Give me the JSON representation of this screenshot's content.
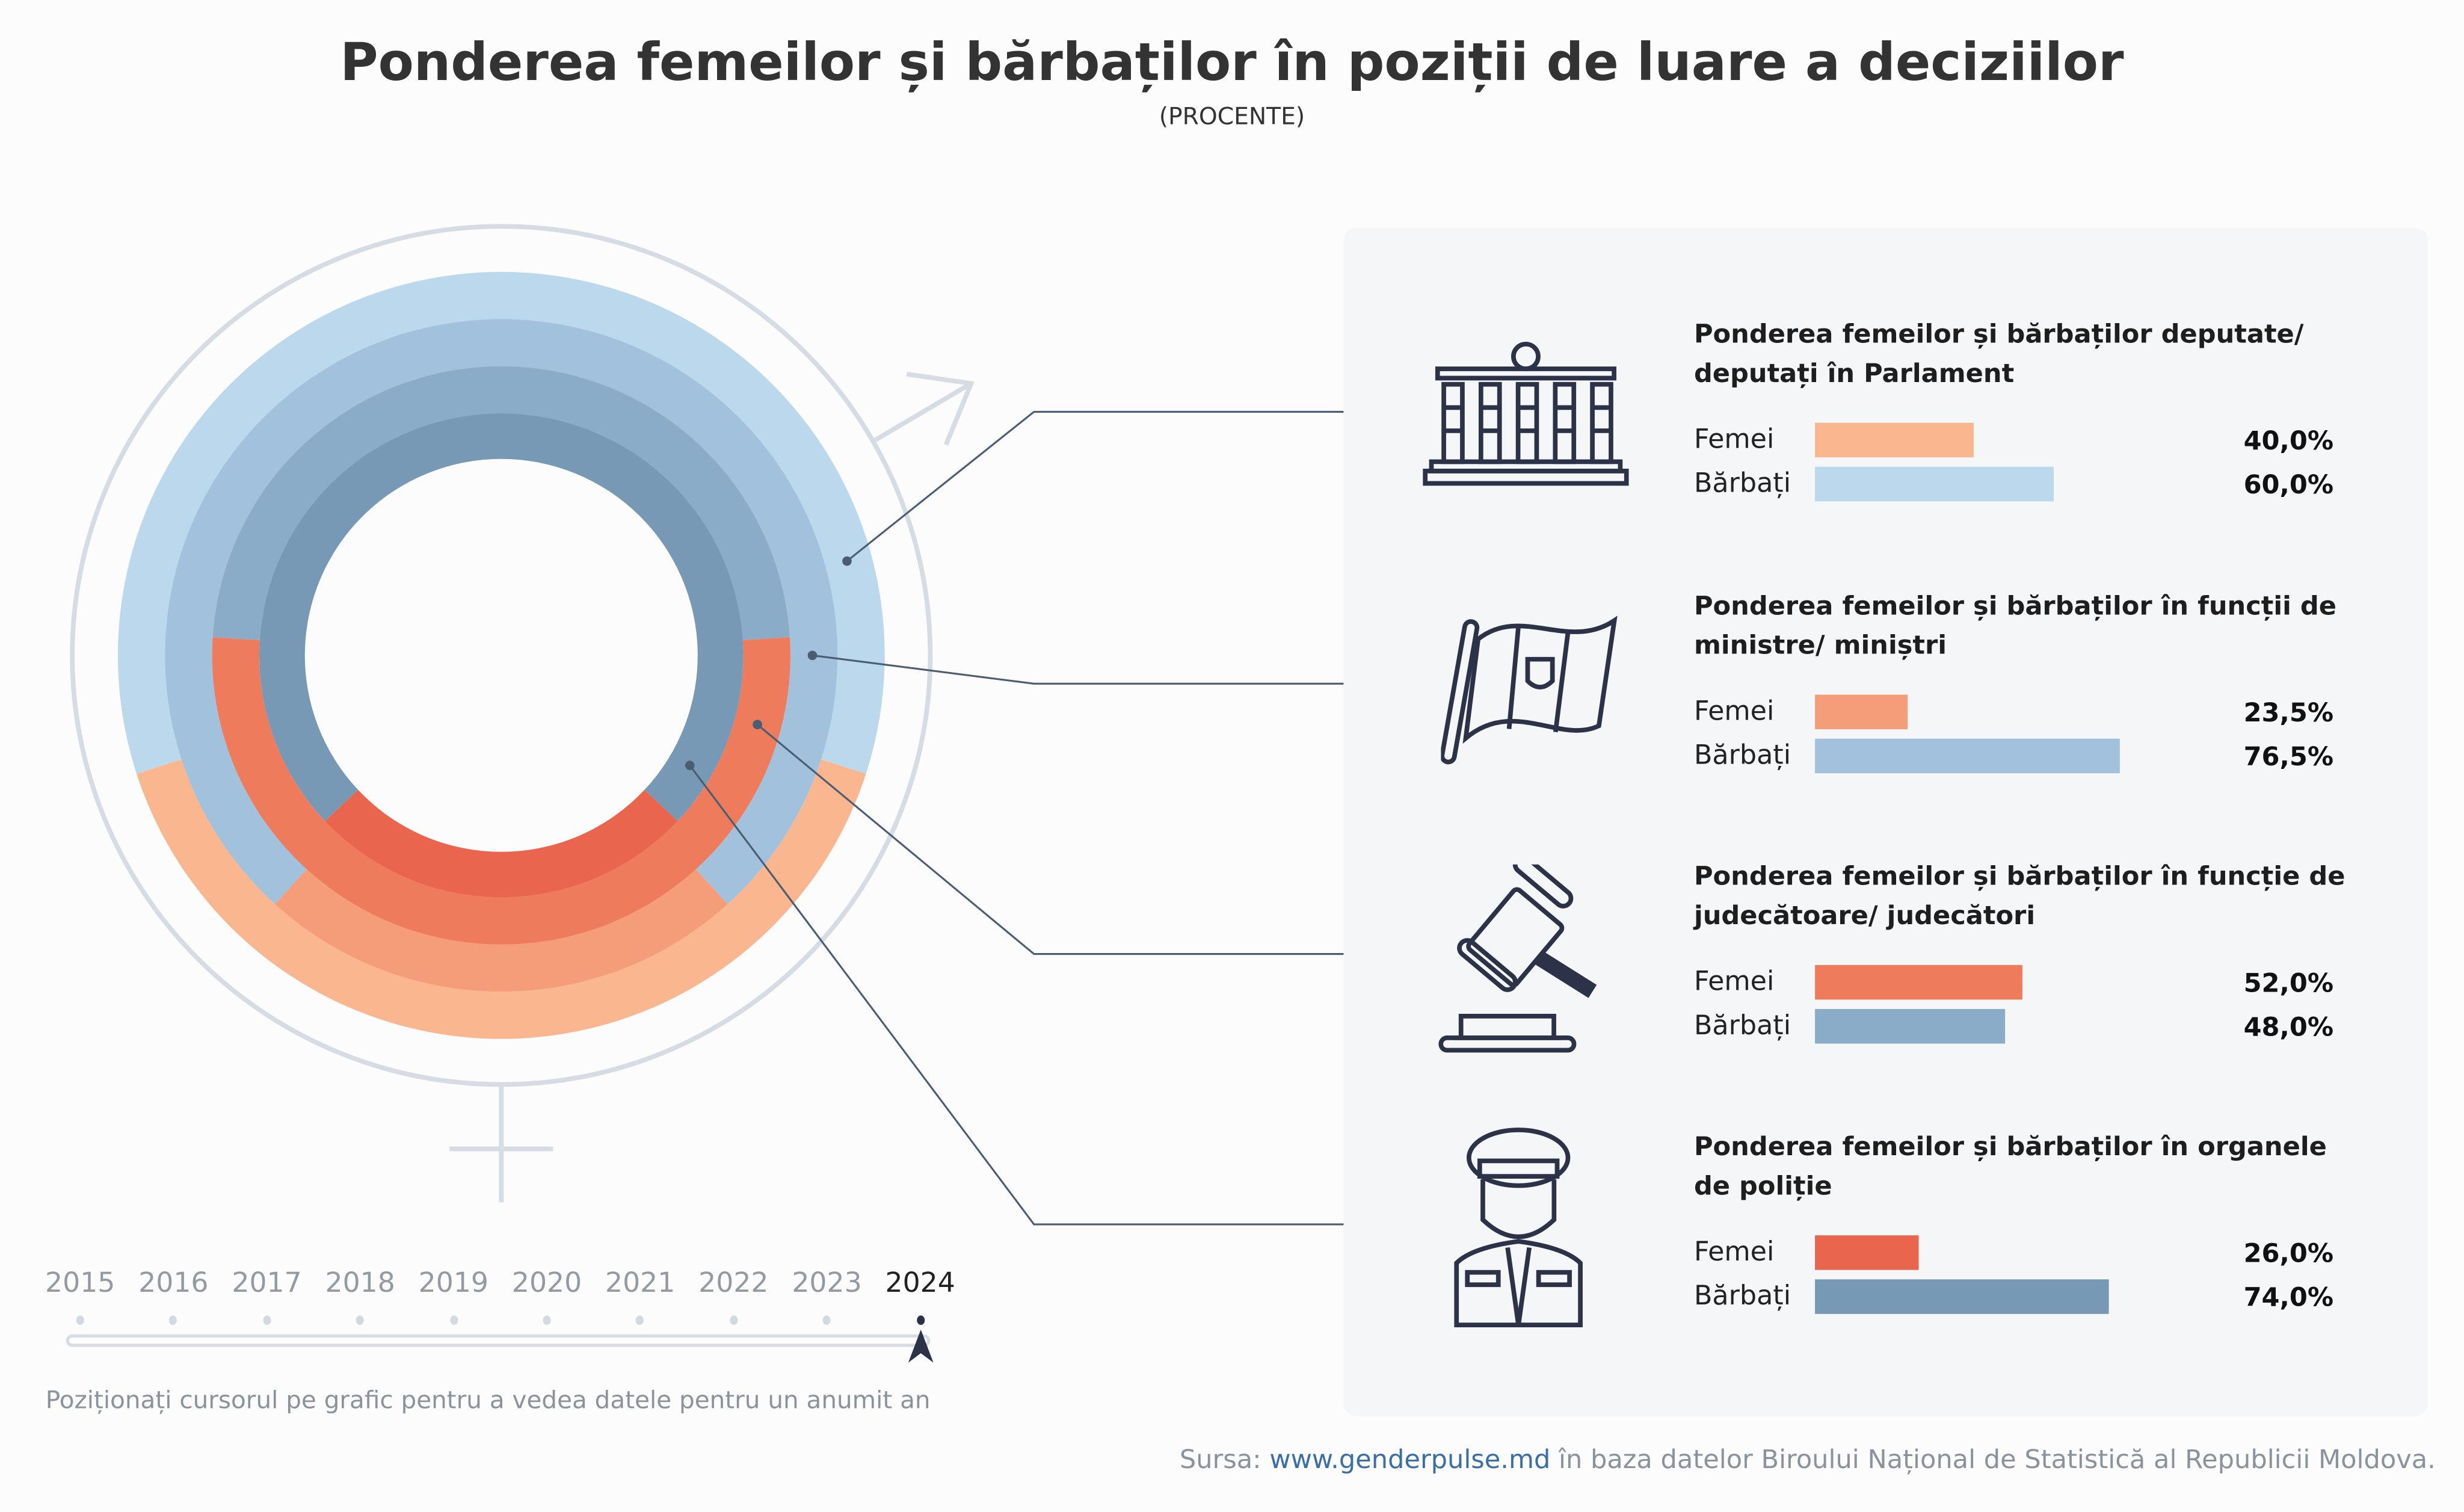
{
  "header": {
    "title": "Ponderea femeilor și bărbaților în poziții de luare a deciziilor",
    "subtitle": "(PROCENTE)"
  },
  "chart_data": {
    "type": "donut-rings",
    "year": "2024",
    "series_labels": {
      "female": "Femei",
      "male": "Bărbați"
    },
    "categories": [
      {
        "title": "Ponderea femeilor și bărbaților deputate/ deputați în Parlament",
        "icon": "parliament-building-icon",
        "female": 40.0,
        "male": 60.0,
        "female_label": "40,0%",
        "male_label": "60,0%",
        "female_color": "#f9b68f",
        "male_color": "#bbd8ed"
      },
      {
        "title": "Ponderea femeilor și bărbaților în funcții de ministre/ miniștri",
        "icon": "flag-icon",
        "female": 23.5,
        "male": 76.5,
        "female_label": "23,5%",
        "male_label": "76,5%",
        "female_color": "#f49d78",
        "male_color": "#a2c1dc"
      },
      {
        "title": "Ponderea femeilor și bărbaților în funcție de judecătoare/ judecători",
        "icon": "gavel-icon",
        "female": 52.0,
        "male": 48.0,
        "female_label": "52,0%",
        "male_label": "48,0%",
        "female_color": "#ef7b5d",
        "male_color": "#8bacc8"
      },
      {
        "title": "Ponderea femeilor și bărbaților în organele de poliție",
        "icon": "police-officer-icon",
        "female": 26.0,
        "male": 74.0,
        "female_label": "26,0%",
        "male_label": "74,0%",
        "female_color": "#e9654d",
        "male_color": "#7799b5"
      }
    ]
  },
  "timeline": {
    "years": [
      "2015",
      "2016",
      "2017",
      "2018",
      "2019",
      "2020",
      "2021",
      "2022",
      "2023",
      "2024"
    ],
    "selected": "2024",
    "hint": "Poziționați cursorul pe grafic pentru a vedea datele pentru un anumit an"
  },
  "source": {
    "prefix": "Sursa: ",
    "link": "www.genderpulse.md",
    "suffix": " în baza datelor Biroului Național de Statistică al Republicii Moldova."
  }
}
